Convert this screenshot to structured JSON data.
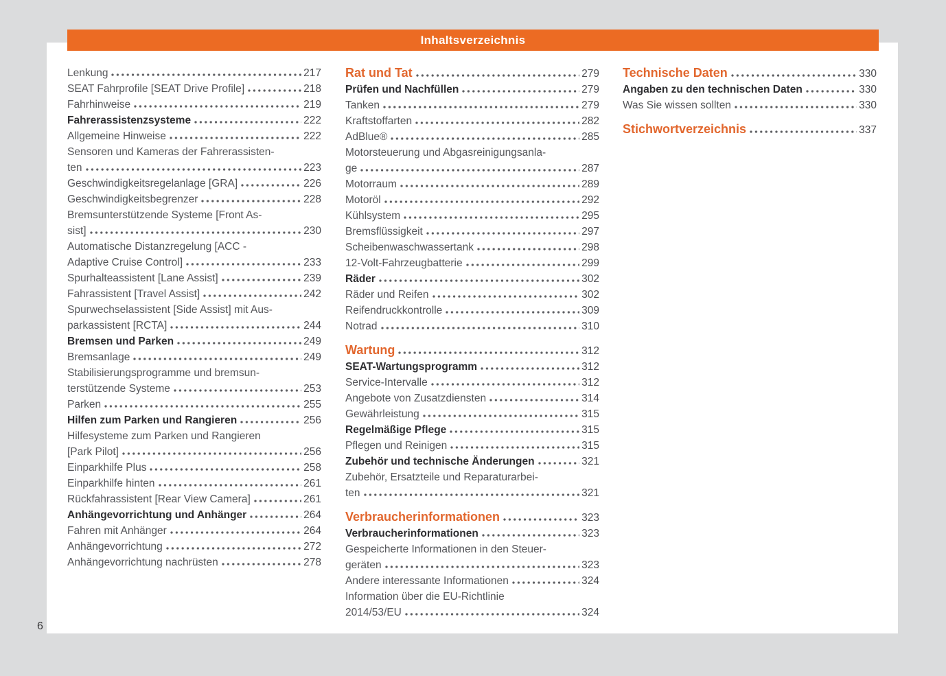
{
  "header": {
    "title": "Inhaltsverzeichnis"
  },
  "page_number": "6",
  "colors": {
    "accent_bar": "#ec6b23",
    "accent_heading_text": "#e2672e",
    "body_text": "#55565a",
    "bold_text": "#2f2f32",
    "canvas_background": "#dbdcdd",
    "sheet_background": "#ffffff"
  },
  "toc": {
    "columns": [
      {
        "entries": [
          {
            "text": "Lenkung",
            "page": "217",
            "style": "normal",
            "gap_before": false
          },
          {
            "text": "SEAT Fahrprofile [SEAT Drive Profile]",
            "page": "218",
            "style": "normal",
            "gap_before": false
          },
          {
            "text": "Fahrhinweise",
            "page": "219",
            "style": "normal",
            "gap_before": false
          },
          {
            "text": "Fahrerassistenzsysteme",
            "page": "222",
            "style": "bold",
            "gap_before": false
          },
          {
            "text": "Allgemeine Hinweise",
            "page": "222",
            "style": "normal",
            "gap_before": false
          },
          {
            "text": "Sensoren und Kameras der Fahrerassisten-\nten",
            "page": "223",
            "style": "normal",
            "gap_before": false
          },
          {
            "text": "Geschwindigkeitsregelanlage [GRA]",
            "page": "226",
            "style": "normal",
            "gap_before": false
          },
          {
            "text": "Geschwindigkeitsbegrenzer",
            "page": "228",
            "style": "normal",
            "gap_before": false
          },
          {
            "text": "Bremsunterstützende Systeme [Front As-\nsist]",
            "page": "230",
            "style": "normal",
            "gap_before": false
          },
          {
            "text": "Automatische Distanzregelung [ACC -\nAdaptive Cruise Control]",
            "page": "233",
            "style": "normal",
            "gap_before": false
          },
          {
            "text": "Spurhalteassistent [Lane Assist]",
            "page": "239",
            "style": "normal",
            "gap_before": false
          },
          {
            "text": "Fahrassistent [Travel Assist]",
            "page": "242",
            "style": "normal",
            "gap_before": false
          },
          {
            "text": "Spurwechselassistent [Side Assist] mit Aus-\nparkassistent [RCTA]",
            "page": "244",
            "style": "normal",
            "gap_before": false
          },
          {
            "text": "Bremsen und Parken",
            "page": "249",
            "style": "bold",
            "gap_before": false
          },
          {
            "text": "Bremsanlage",
            "page": "249",
            "style": "normal",
            "gap_before": false
          },
          {
            "text": "Stabilisierungsprogramme und bremsun-\nterstützende Systeme",
            "page": "253",
            "style": "normal",
            "gap_before": false
          },
          {
            "text": "Parken",
            "page": "255",
            "style": "normal",
            "gap_before": false
          },
          {
            "text": "Hilfen zum Parken und Rangieren",
            "page": "256",
            "style": "bold",
            "gap_before": false
          },
          {
            "text": "Hilfesysteme zum Parken und Rangieren\n[Park Pilot]",
            "page": "256",
            "style": "normal",
            "gap_before": false
          },
          {
            "text": "Einparkhilfe Plus",
            "page": "258",
            "style": "normal",
            "gap_before": false
          },
          {
            "text": "Einparkhilfe hinten",
            "page": "261",
            "style": "normal",
            "gap_before": false
          },
          {
            "text": "Rückfahrassistent [Rear View Camera]",
            "page": "261",
            "style": "normal",
            "gap_before": false
          },
          {
            "text": "Anhängevorrichtung und Anhänger",
            "page": "264",
            "style": "bold",
            "gap_before": false
          },
          {
            "text": "Fahren mit Anhänger",
            "page": "264",
            "style": "normal",
            "gap_before": false
          },
          {
            "text": "Anhängevorrichtung",
            "page": "272",
            "style": "normal",
            "gap_before": false
          },
          {
            "text": "Anhängevorrichtung nachrüsten",
            "page": "278",
            "style": "normal",
            "gap_before": false
          }
        ]
      },
      {
        "entries": [
          {
            "text": "Rat und Tat",
            "page": "279",
            "style": "heading",
            "gap_before": false
          },
          {
            "text": "Prüfen und Nachfüllen",
            "page": "279",
            "style": "bold",
            "gap_before": false
          },
          {
            "text": "Tanken",
            "page": "279",
            "style": "normal",
            "gap_before": false
          },
          {
            "text": "Kraftstoffarten",
            "page": "282",
            "style": "normal",
            "gap_before": false
          },
          {
            "text": "AdBlue®",
            "page": "285",
            "style": "normal",
            "gap_before": false
          },
          {
            "text": "Motorsteuerung und Abgasreinigungsanla-\nge",
            "page": "287",
            "style": "normal",
            "gap_before": false
          },
          {
            "text": "Motorraum",
            "page": "289",
            "style": "normal",
            "gap_before": false
          },
          {
            "text": "Motoröl",
            "page": "292",
            "style": "normal",
            "gap_before": false
          },
          {
            "text": "Kühlsystem",
            "page": "295",
            "style": "normal",
            "gap_before": false
          },
          {
            "text": "Bremsflüssigkeit",
            "page": "297",
            "style": "normal",
            "gap_before": false
          },
          {
            "text": "Scheibenwaschwassertank",
            "page": "298",
            "style": "normal",
            "gap_before": false
          },
          {
            "text": "12-Volt-Fahrzeugbatterie",
            "page": "299",
            "style": "normal",
            "gap_before": false
          },
          {
            "text": "Räder",
            "page": "302",
            "style": "bold",
            "gap_before": false
          },
          {
            "text": "Räder und Reifen",
            "page": "302",
            "style": "normal",
            "gap_before": false
          },
          {
            "text": "Reifendruckkontrolle",
            "page": "309",
            "style": "normal",
            "gap_before": false
          },
          {
            "text": "Notrad",
            "page": "310",
            "style": "normal",
            "gap_before": false
          },
          {
            "text": "Wartung",
            "page": "312",
            "style": "heading",
            "gap_before": true
          },
          {
            "text": "SEAT-Wartungsprogramm",
            "page": "312",
            "style": "bold",
            "gap_before": false
          },
          {
            "text": "Service-Intervalle",
            "page": "312",
            "style": "normal",
            "gap_before": false
          },
          {
            "text": "Angebote von Zusatzdiensten",
            "page": "314",
            "style": "normal",
            "gap_before": false
          },
          {
            "text": "Gewährleistung",
            "page": "315",
            "style": "normal",
            "gap_before": false
          },
          {
            "text": "Regelmäßige Pflege",
            "page": "315",
            "style": "bold",
            "gap_before": false
          },
          {
            "text": "Pflegen und Reinigen",
            "page": "315",
            "style": "normal",
            "gap_before": false
          },
          {
            "text": "Zubehör und technische Änderungen",
            "page": "321",
            "style": "bold",
            "gap_before": false
          },
          {
            "text": "Zubehör, Ersatzteile und Reparaturarbei-\nten",
            "page": "321",
            "style": "normal",
            "gap_before": false
          },
          {
            "text": "Verbraucherinformationen",
            "page": "323",
            "style": "heading",
            "gap_before": true
          },
          {
            "text": "Verbraucherinformationen",
            "page": "323",
            "style": "bold",
            "gap_before": false
          },
          {
            "text": "Gespeicherte Informationen in den Steuer-\ngeräten",
            "page": "323",
            "style": "normal",
            "gap_before": false
          },
          {
            "text": "Andere interessante Informationen",
            "page": "324",
            "style": "normal",
            "gap_before": false
          },
          {
            "text": "Information über die EU-Richtlinie\n2014/53/EU",
            "page": "324",
            "style": "normal",
            "gap_before": false
          }
        ]
      },
      {
        "entries": [
          {
            "text": "Technische Daten",
            "page": "330",
            "style": "heading",
            "gap_before": false
          },
          {
            "text": "Angaben zu den technischen Daten",
            "page": "330",
            "style": "bold",
            "gap_before": false
          },
          {
            "text": "Was Sie wissen sollten",
            "page": "330",
            "style": "normal",
            "gap_before": false
          },
          {
            "text": "Stichwortverzeichnis",
            "page": "337",
            "style": "heading",
            "gap_before": true
          }
        ]
      }
    ]
  }
}
